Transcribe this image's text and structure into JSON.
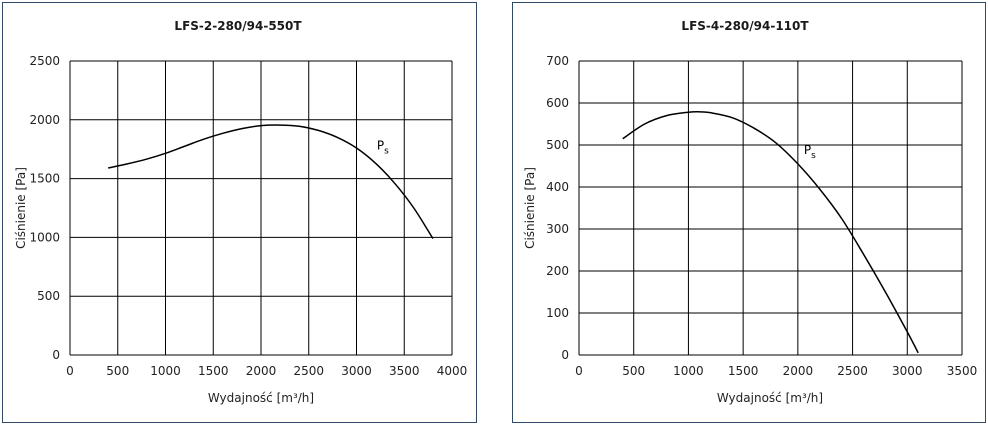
{
  "chart_data": [
    {
      "type": "line",
      "title": "LFS-2-280/94-550T",
      "xlabel": "Wydajność [m³/h]",
      "ylabel": "Ciśnienie [Pa]",
      "xlim": [
        0,
        4000
      ],
      "ylim": [
        0,
        2500
      ],
      "xticks": [
        "0",
        "500",
        "1000",
        "1500",
        "2000",
        "2500",
        "3000",
        "3500",
        "4000"
      ],
      "yticks": [
        "0",
        "500",
        "1000",
        "1500",
        "2000",
        "2500"
      ],
      "grid": true,
      "series": [
        {
          "name": "Ps",
          "x": [
            400,
            600,
            800,
            1000,
            1200,
            1400,
            1600,
            1800,
            2000,
            2200,
            2400,
            2600,
            2800,
            3000,
            3200,
            3400,
            3600,
            3800
          ],
          "y": [
            1590,
            1625,
            1665,
            1715,
            1775,
            1835,
            1885,
            1925,
            1950,
            1955,
            1945,
            1910,
            1850,
            1760,
            1630,
            1460,
            1250,
            990
          ]
        }
      ],
      "series_label": {
        "main": "P",
        "sub": "s"
      }
    },
    {
      "type": "line",
      "title": "LFS-4-280/94-110T",
      "xlabel": "Wydajność [m³/h]",
      "ylabel": "Ciśnienie [Pa]",
      "xlim": [
        0,
        3500
      ],
      "ylim": [
        0,
        700
      ],
      "xticks": [
        "0",
        "500",
        "1000",
        "1500",
        "2000",
        "2500",
        "3000",
        "3500"
      ],
      "yticks": [
        "0",
        "100",
        "200",
        "300",
        "400",
        "500",
        "600",
        "700"
      ],
      "grid": true,
      "series": [
        {
          "name": "Ps",
          "x": [
            400,
            600,
            800,
            1000,
            1100,
            1200,
            1400,
            1600,
            1800,
            2000,
            2200,
            2400,
            2600,
            2800,
            3000,
            3100
          ],
          "y": [
            515,
            550,
            570,
            578,
            579,
            577,
            565,
            540,
            505,
            455,
            395,
            325,
            240,
            150,
            55,
            5
          ]
        }
      ],
      "series_label": {
        "main": "P",
        "sub": "s"
      }
    }
  ]
}
